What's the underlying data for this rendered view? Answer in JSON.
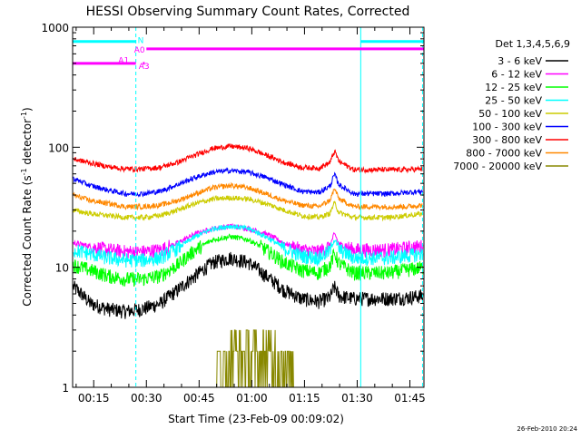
{
  "chart_data": {
    "type": "line",
    "title": "HESSI Observing Summary Count Rates, Corrected",
    "xlabel": "Start Time (23-Feb-09 00:09:02)",
    "ylabel_main": "Corrected Count Rate (s",
    "ylabel_sup": "-1",
    "ylabel_mid": " detector",
    "ylabel_sup2": "-1",
    "ylabel_end": ")",
    "x_range_minutes": [
      9,
      109
    ],
    "x_ticks": [
      {
        "t": 15,
        "label": "00:15"
      },
      {
        "t": 30,
        "label": "00:30"
      },
      {
        "t": 45,
        "label": "00:45"
      },
      {
        "t": 60,
        "label": "01:00"
      },
      {
        "t": 75,
        "label": "01:15"
      },
      {
        "t": 90,
        "label": "01:30"
      },
      {
        "t": 105,
        "label": "01:45"
      }
    ],
    "yscale": "log",
    "ylim": [
      1,
      1000
    ],
    "y_ticks": [
      {
        "v": 1,
        "label": "1"
      },
      {
        "v": 10,
        "label": "10"
      },
      {
        "v": 100,
        "label": "100"
      },
      {
        "v": 1000,
        "label": "1000"
      }
    ],
    "legend_title": "Det 1,3,4,5,6,9",
    "legend_position": "right",
    "timestamp": "26-Feb-2010 20:24",
    "series": [
      {
        "name": "3 - 6 keV",
        "color": "#000000",
        "profile": [
          7,
          5,
          4.5,
          4.3,
          4.5,
          5,
          6.5,
          8.5,
          11,
          12,
          11,
          8.5,
          6.5,
          5.5,
          5.2,
          5.8,
          5.5,
          5.5,
          5.5,
          5.6,
          5.8
        ]
      },
      {
        "name": "6 - 12 keV",
        "color": "#ff00ff",
        "profile": [
          16,
          15,
          14,
          13.5,
          13.5,
          14,
          16,
          19,
          21,
          22,
          21,
          19,
          16,
          14,
          13.5,
          16,
          14,
          14,
          14,
          14.5,
          15
        ]
      },
      {
        "name": "12 - 25 keV",
        "color": "#00ff00",
        "profile": [
          10.5,
          9.5,
          8.5,
          8,
          8,
          8.5,
          10.5,
          14,
          17,
          18,
          17,
          14,
          11,
          9.5,
          9,
          11,
          9,
          9,
          9,
          9.5,
          10
        ]
      },
      {
        "name": "25 - 50 keV",
        "color": "#00ffff",
        "profile": [
          14,
          13,
          12,
          11.5,
          11.5,
          12,
          14.5,
          18,
          21,
          22,
          21,
          18,
          14.5,
          12.5,
          12,
          14.5,
          12,
          12,
          12,
          12.5,
          13
        ]
      },
      {
        "name": "50 - 100 keV",
        "color": "#cccc00",
        "profile": [
          30,
          28,
          27,
          26,
          26,
          27,
          30,
          34,
          37,
          38,
          37,
          34,
          30,
          27,
          26,
          29,
          26,
          26,
          26,
          27,
          28
        ]
      },
      {
        "name": "100 - 300 keV",
        "color": "#0000ff",
        "profile": [
          55,
          48,
          44,
          41,
          41,
          43,
          49,
          56,
          62,
          64,
          62,
          56,
          49,
          43,
          42,
          50,
          41,
          41,
          41,
          42,
          43
        ]
      },
      {
        "name": "300 - 800 keV",
        "color": "#ff0000",
        "profile": [
          80,
          74,
          69,
          66,
          66,
          68,
          75,
          86,
          98,
          102,
          98,
          86,
          75,
          68,
          67,
          78,
          65,
          65,
          65,
          65,
          66
        ]
      },
      {
        "name": "800 - 7000 keV",
        "color": "#ff8800",
        "profile": [
          40,
          36,
          34,
          32,
          32,
          33,
          36,
          41,
          46,
          48,
          46,
          41,
          36,
          33,
          32,
          38,
          32,
          32,
          32,
          32,
          33
        ]
      },
      {
        "name": "7000 - 20000 keV",
        "color": "#888800",
        "profile": []
      }
    ],
    "flags": [
      {
        "label": "N",
        "color": "#00ffff",
        "y": 760,
        "segments": [
          [
            9,
            27
          ],
          [
            91,
            109
          ]
        ]
      },
      {
        "label": "A0",
        "color": "#ff00ff",
        "y": 660,
        "segments": [
          [
            30,
            109
          ]
        ]
      },
      {
        "label": "A1",
        "color": "#ff00ff",
        "y": 500,
        "segments": [
          [
            9,
            27
          ]
        ]
      },
      {
        "label": "A3",
        "color": "#ff00ff",
        "y": 500,
        "segments": [
          [
            29,
            29
          ]
        ]
      }
    ],
    "vlines": [
      {
        "t": 9,
        "color": "#00ffff",
        "style": "solid"
      },
      {
        "t": 27,
        "color": "#00ffff",
        "style": "dashed"
      },
      {
        "t": 91,
        "color": "#00ffff",
        "style": "solid"
      },
      {
        "t": 108.6,
        "color": "#00ffff",
        "style": "dashed"
      }
    ]
  }
}
